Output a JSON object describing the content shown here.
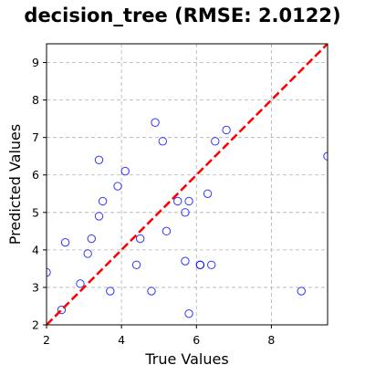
{
  "chart_data": {
    "type": "scatter",
    "title": "decision_tree (RMSE: 2.0122)",
    "xlabel": "True Values",
    "ylabel": "Predicted Values",
    "xlim": [
      2,
      9.5
    ],
    "ylim": [
      2,
      9.5
    ],
    "xticks": [
      2,
      4,
      6,
      8
    ],
    "yticks": [
      2,
      3,
      4,
      5,
      6,
      7,
      8,
      9
    ],
    "grid": true,
    "marker_color": "#0000ff",
    "reference_line": {
      "type": "y=x",
      "color": "#ff0000",
      "style": "dashed"
    },
    "points": [
      {
        "x": 2.0,
        "y": 3.4
      },
      {
        "x": 2.4,
        "y": 2.4
      },
      {
        "x": 2.5,
        "y": 4.2
      },
      {
        "x": 2.9,
        "y": 3.1
      },
      {
        "x": 3.1,
        "y": 3.9
      },
      {
        "x": 3.2,
        "y": 4.3
      },
      {
        "x": 3.4,
        "y": 6.4
      },
      {
        "x": 3.4,
        "y": 4.9
      },
      {
        "x": 3.5,
        "y": 5.3
      },
      {
        "x": 3.7,
        "y": 2.9
      },
      {
        "x": 3.9,
        "y": 5.7
      },
      {
        "x": 4.1,
        "y": 6.1
      },
      {
        "x": 4.4,
        "y": 3.6
      },
      {
        "x": 4.5,
        "y": 4.3
      },
      {
        "x": 4.8,
        "y": 2.9
      },
      {
        "x": 4.9,
        "y": 7.4
      },
      {
        "x": 5.1,
        "y": 6.9
      },
      {
        "x": 5.2,
        "y": 4.5
      },
      {
        "x": 5.5,
        "y": 5.3
      },
      {
        "x": 5.7,
        "y": 5.0
      },
      {
        "x": 5.7,
        "y": 3.7
      },
      {
        "x": 5.8,
        "y": 5.3
      },
      {
        "x": 5.8,
        "y": 2.3
      },
      {
        "x": 6.1,
        "y": 3.6
      },
      {
        "x": 6.1,
        "y": 3.6
      },
      {
        "x": 6.3,
        "y": 5.5
      },
      {
        "x": 6.4,
        "y": 3.6
      },
      {
        "x": 6.5,
        "y": 6.9
      },
      {
        "x": 6.8,
        "y": 7.2
      },
      {
        "x": 8.8,
        "y": 2.9
      },
      {
        "x": 9.5,
        "y": 6.5
      }
    ]
  }
}
